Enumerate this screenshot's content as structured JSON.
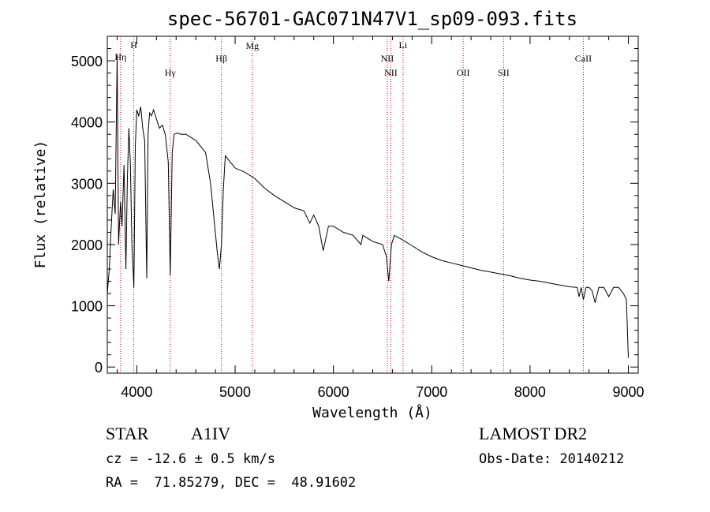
{
  "chart_data": {
    "type": "line",
    "title": "spec-56701-GAC071N47V1_sp09-093.fits",
    "xlabel": "Wavelength (Å)",
    "ylabel": "Flux (relative)",
    "xlim": [
      3700,
      9100
    ],
    "ylim": [
      -100,
      5400
    ],
    "x_ticks": [
      4000,
      5000,
      6000,
      7000,
      8000,
      9000
    ],
    "y_ticks": [
      0,
      1000,
      2000,
      3000,
      4000,
      5000
    ],
    "grid": false,
    "colors": {
      "spectrum": "#000000",
      "lines": "#cc0000",
      "axes": "#000000"
    },
    "series": [
      {
        "x": [
          3700,
          3720,
          3740,
          3760,
          3780,
          3800,
          3815,
          3835,
          3850,
          3870,
          3889,
          3905,
          3920,
          3935,
          3950,
          3970,
          3985,
          4000,
          4020,
          4040,
          4060,
          4080,
          4101,
          4115,
          4130,
          4150,
          4170,
          4200,
          4230,
          4260,
          4290,
          4320,
          4340,
          4360,
          4380,
          4410,
          4450,
          4500,
          4550,
          4600,
          4650,
          4700,
          4750,
          4790,
          4820,
          4840,
          4861,
          4880,
          4900,
          4950,
          5000,
          5100,
          5200,
          5300,
          5400,
          5500,
          5600,
          5700,
          5760,
          5800,
          5850,
          5890,
          5896,
          5950,
          6000,
          6100,
          6200,
          6280,
          6300,
          6400,
          6500,
          6540,
          6563,
          6590,
          6620,
          6700,
          6800,
          6900,
          7000,
          7100,
          7200,
          7300,
          7400,
          7500,
          7600,
          7700,
          7800,
          7900,
          8000,
          8100,
          8200,
          8300,
          8400,
          8480,
          8498,
          8520,
          8542,
          8570,
          8600,
          8630,
          8662,
          8700,
          8750,
          8800,
          8850,
          8900,
          8950,
          8980,
          9000
        ],
        "y": [
          1200,
          1600,
          2300,
          2900,
          2500,
          5100,
          2000,
          2700,
          2300,
          3300,
          1600,
          3100,
          3900,
          3300,
          2000,
          1300,
          3600,
          4200,
          4100,
          4250,
          3900,
          3700,
          1450,
          3800,
          4150,
          4100,
          4200,
          4050,
          3900,
          3950,
          3800,
          3350,
          1500,
          3500,
          3800,
          3820,
          3800,
          3800,
          3750,
          3700,
          3600,
          3500,
          3000,
          2350,
          1850,
          1600,
          2000,
          2900,
          3450,
          3350,
          3250,
          3180,
          3080,
          2920,
          2800,
          2700,
          2600,
          2550,
          2350,
          2480,
          2300,
          1950,
          1900,
          2300,
          2300,
          2200,
          2150,
          2000,
          2150,
          2050,
          2000,
          1800,
          1400,
          2000,
          2150,
          2080,
          1980,
          1880,
          1800,
          1740,
          1700,
          1660,
          1620,
          1580,
          1550,
          1520,
          1490,
          1450,
          1420,
          1400,
          1370,
          1340,
          1310,
          1300,
          1150,
          1300,
          1100,
          1300,
          1300,
          1250,
          1050,
          1300,
          1300,
          1150,
          1300,
          1300,
          1200,
          1100,
          150
        ]
      }
    ],
    "spectral_lines": [
      {
        "label": "Hη",
        "wavelength": 3835
      },
      {
        "label": "H",
        "wavelength": 3969
      },
      {
        "label": "Hγ",
        "wavelength": 4340
      },
      {
        "label": "Hβ",
        "wavelength": 4861
      },
      {
        "label": "Mg",
        "wavelength": 5175
      },
      {
        "label": "NII",
        "wavelength": 6548
      },
      {
        "label": "NII",
        "wavelength": 6584
      },
      {
        "label": "Li",
        "wavelength": 6708
      },
      {
        "label": "OII",
        "wavelength": 7320
      },
      {
        "label": "SII",
        "wavelength": 7731
      },
      {
        "label": "CaII",
        "wavelength": 8542
      }
    ]
  },
  "info": {
    "object_class": "STAR",
    "subclass": "A1IV",
    "survey": "LAMOST DR2",
    "redshift": "cz = -12.6 ± 0.5 km/s",
    "obs_date": "Obs-Date: 20140212",
    "coords": "RA =  71.85279, DEC =  48.91602"
  }
}
